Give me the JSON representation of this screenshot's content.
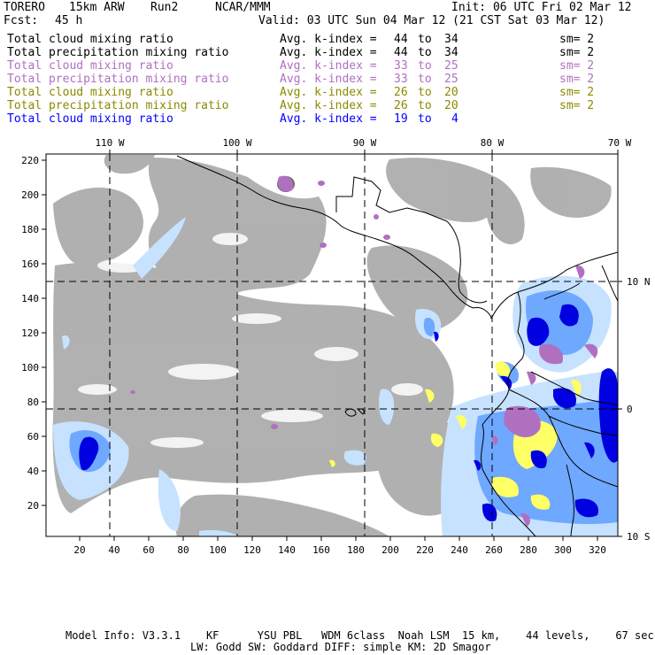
{
  "header": {
    "model": "TORERO",
    "resolution": "15km ARW",
    "run": "Run2",
    "org": "NCAR/MMM",
    "init": "Init: 06 UTC Fri 02 Mar 12",
    "fcst_label": "Fcst:",
    "fcst_value": "45 h",
    "valid": "Valid: 03 UTC Sun 04 Mar 12 (21 CST Sat 03 Mar 12)"
  },
  "legend": [
    {
      "field": "Total cloud mixing ratio",
      "avg": "Avg. k-index =",
      "from": "44",
      "to_word": "to",
      "to": "34",
      "sm": "sm= 2",
      "color": "#000000"
    },
    {
      "field": "Total precipitation mixing ratio",
      "avg": "Avg. k-index =",
      "from": "44",
      "to_word": "to",
      "to": "34",
      "sm": "sm= 2",
      "color": "#000000"
    },
    {
      "field": "Total cloud mixing ratio",
      "avg": "Avg. k-index =",
      "from": "33",
      "to_word": "to",
      "to": "25",
      "sm": "sm= 2",
      "color": "#b070c0"
    },
    {
      "field": "Total precipitation mixing ratio",
      "avg": "Avg. k-index =",
      "from": "33",
      "to_word": "to",
      "to": "25",
      "sm": "sm= 2",
      "color": "#b070c0"
    },
    {
      "field": "Total cloud mixing ratio",
      "avg": "Avg. k-index =",
      "from": "26",
      "to_word": "to",
      "to": "20",
      "sm": "sm= 2",
      "color": "#8a8a00"
    },
    {
      "field": "Total precipitation mixing ratio",
      "avg": "Avg. k-index =",
      "from": "26",
      "to_word": "to",
      "to": "20",
      "sm": "sm= 2",
      "color": "#8a8a00"
    },
    {
      "field": "Total cloud mixing ratio",
      "avg": "Avg. k-index =",
      "from": "19",
      "to_word": "to",
      "to": "4",
      "sm": "",
      "color": "#0000ff"
    }
  ],
  "map": {
    "lon_labels": [
      "110 W",
      "100 W",
      "90 W",
      "80 W",
      "70 W"
    ],
    "lat_labels": [
      "10 N",
      "0",
      "10 S"
    ],
    "y_ticks": [
      "220",
      "200",
      "180",
      "160",
      "140",
      "120",
      "100",
      "80",
      "60",
      "40",
      "20"
    ],
    "x_ticks": [
      "20",
      "40",
      "60",
      "80",
      "100",
      "120",
      "140",
      "160",
      "180",
      "200",
      "220",
      "240",
      "260",
      "280",
      "300",
      "320"
    ],
    "colors": {
      "cloud_gray": "#a8a8a8",
      "cloud_dark": "#6a6a6a",
      "light_blue": "#c6e2ff",
      "mid_blue": "#6fa8ff",
      "deep_blue": "#0000e0",
      "yellow": "#ffff66",
      "purple": "#b070c0"
    }
  },
  "footer": {
    "line1": "Model Info: V3.3.1    KF      YSU PBL   WDM 6class  Noah LSM  15 km,    44 levels,    67 sec",
    "line2": "LW: Godd SW: Goddard DIFF: simple KM: 2D Smagor"
  }
}
